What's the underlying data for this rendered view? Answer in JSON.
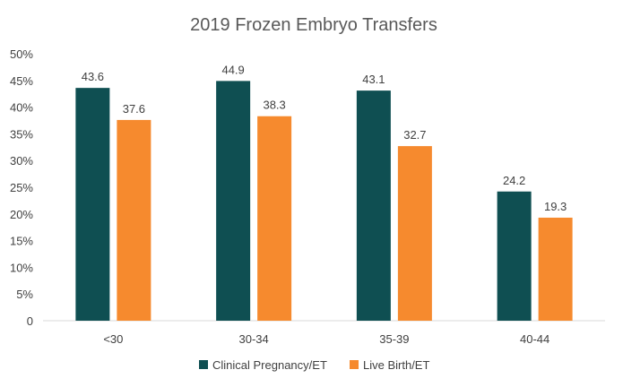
{
  "chart_data": {
    "type": "bar",
    "title": "2019 Frozen Embryo Transfers",
    "xlabel": "",
    "ylabel": "",
    "categories": [
      "<30",
      "30-34",
      "35-39",
      "40-44"
    ],
    "series": [
      {
        "name": "Clinical Pregnancy/ET",
        "color": "#0f4f52",
        "values": [
          43.6,
          44.9,
          43.1,
          24.2
        ]
      },
      {
        "name": "Live Birth/ET",
        "color": "#f68a2e",
        "values": [
          37.6,
          38.3,
          32.7,
          19.3
        ]
      }
    ],
    "ylim": [
      0,
      50
    ],
    "yticks": [
      0,
      5,
      10,
      15,
      20,
      25,
      30,
      35,
      40,
      45,
      50
    ],
    "ytick_labels": [
      "0",
      "5%",
      "10%",
      "15%",
      "20%",
      "25%",
      "30%",
      "35%",
      "40%",
      "45%",
      "50%"
    ],
    "data_labels": true,
    "grid": false,
    "legend": "bottom"
  }
}
